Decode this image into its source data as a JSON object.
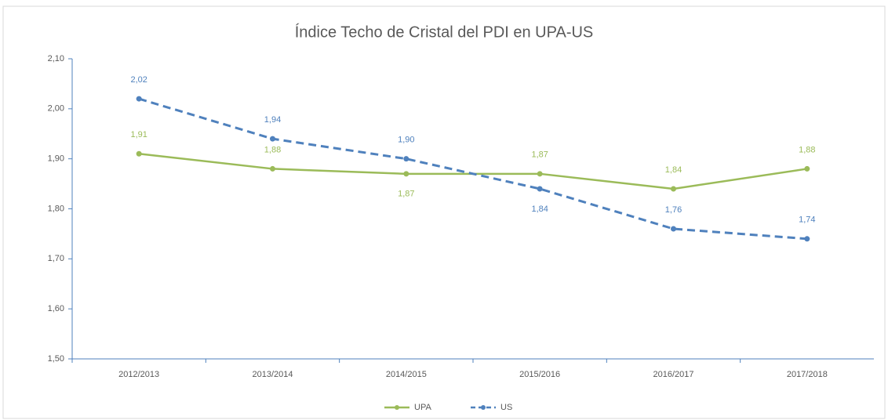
{
  "chart_data": {
    "type": "line",
    "title": "Índice Techo de Cristal del PDI en UPA-US",
    "categories": [
      "2012/2013",
      "2013/2014",
      "2014/2015",
      "2015/2016",
      "2016/2017",
      "2017/2018"
    ],
    "series": [
      {
        "name": "UPA",
        "color": "#9bbb59",
        "values": [
          1.91,
          1.88,
          1.87,
          1.87,
          1.84,
          1.88
        ],
        "value_labels": [
          "1,91",
          "1,88",
          "1,87",
          "1,87",
          "1,84",
          "1,88"
        ]
      },
      {
        "name": "US",
        "color": "#4f81bd",
        "dashed": true,
        "values": [
          2.02,
          1.94,
          1.9,
          1.84,
          1.76,
          1.74
        ],
        "value_labels": [
          "2,02",
          "1,94",
          "1,90",
          "1,84",
          "1,76",
          "1,74"
        ]
      }
    ],
    "ylim": [
      1.5,
      2.1
    ],
    "yticks": [
      {
        "value": 1.5,
        "label": "1,50"
      },
      {
        "value": 1.6,
        "label": "1,60"
      },
      {
        "value": 1.7,
        "label": "1,70"
      },
      {
        "value": 1.8,
        "label": "1,80"
      },
      {
        "value": 1.9,
        "label": "1,90"
      },
      {
        "value": 2.0,
        "label": "2,00"
      },
      {
        "value": 2.1,
        "label": "2,10"
      }
    ],
    "grid": false,
    "legend": "bottom"
  }
}
